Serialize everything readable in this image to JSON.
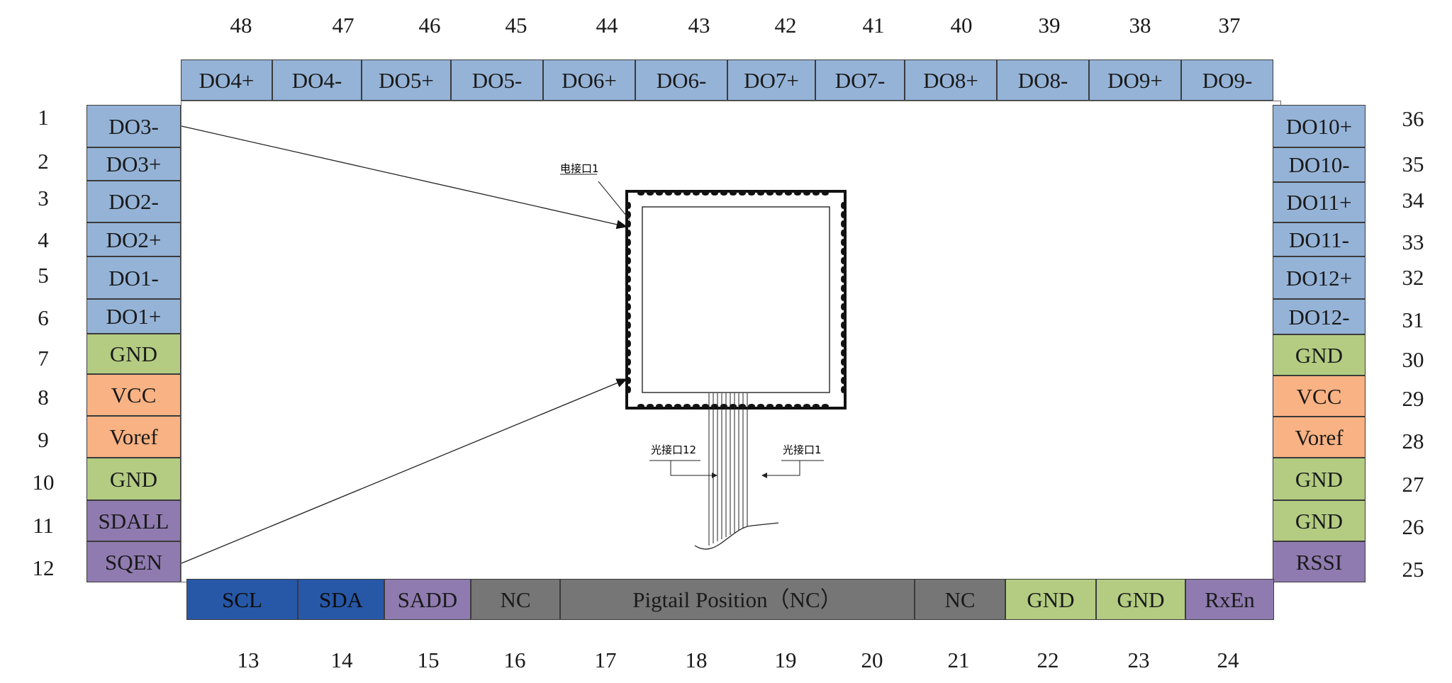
{
  "top_pins": [
    {
      "num": "48",
      "label": "DO4+",
      "color": "#95b3d7"
    },
    {
      "num": "47",
      "label": "DO4-",
      "color": "#95b3d7"
    },
    {
      "num": "46",
      "label": "DO5+",
      "color": "#95b3d7"
    },
    {
      "num": "45",
      "label": "DO5-",
      "color": "#95b3d7"
    },
    {
      "num": "44",
      "label": "DO6+",
      "color": "#95b3d7"
    },
    {
      "num": "43",
      "label": "DO6-",
      "color": "#95b3d7"
    },
    {
      "num": "42",
      "label": "DO7+",
      "color": "#95b3d7"
    },
    {
      "num": "41",
      "label": "DO7-",
      "color": "#95b3d7"
    },
    {
      "num": "40",
      "label": "DO8+",
      "color": "#95b3d7"
    },
    {
      "num": "39",
      "label": "DO8-",
      "color": "#95b3d7"
    },
    {
      "num": "38",
      "label": "DO9+",
      "color": "#95b3d7"
    },
    {
      "num": "37",
      "label": "DO9-",
      "color": "#95b3d7"
    }
  ],
  "left_pins": [
    {
      "num": "1",
      "label": "DO3-",
      "color": "#95b3d7"
    },
    {
      "num": "2",
      "label": "DO3+",
      "color": "#95b3d7"
    },
    {
      "num": "3",
      "label": "DO2-",
      "color": "#95b3d7"
    },
    {
      "num": "4",
      "label": "DO2+",
      "color": "#95b3d7"
    },
    {
      "num": "5",
      "label": "DO1-",
      "color": "#95b3d7"
    },
    {
      "num": "6",
      "label": "DO1+",
      "color": "#95b3d7"
    },
    {
      "num": "7",
      "label": "GND",
      "color": "#b3cc82"
    },
    {
      "num": "8",
      "label": "VCC",
      "color": "#f9b283"
    },
    {
      "num": "9",
      "label": "Voref",
      "color": "#f9b283"
    },
    {
      "num": "10",
      "label": "GND",
      "color": "#b3cc82"
    },
    {
      "num": "11",
      "label": "SDALL",
      "color": "#8f7bb0"
    },
    {
      "num": "12",
      "label": "SQEN",
      "color": "#8f7bb0"
    }
  ],
  "right_pins": [
    {
      "num": "36",
      "label": "DO10+",
      "color": "#95b3d7"
    },
    {
      "num": "35",
      "label": "DO10-",
      "color": "#95b3d7"
    },
    {
      "num": "34",
      "label": "DO11+",
      "color": "#95b3d7"
    },
    {
      "num": "33",
      "label": "DO11-",
      "color": "#95b3d7"
    },
    {
      "num": "32",
      "label": "DO12+",
      "color": "#95b3d7"
    },
    {
      "num": "31",
      "label": "DO12-",
      "color": "#95b3d7"
    },
    {
      "num": "30",
      "label": "GND",
      "color": "#b3cc82"
    },
    {
      "num": "29",
      "label": "VCC",
      "color": "#f9b283"
    },
    {
      "num": "28",
      "label": "Voref",
      "color": "#f9b283"
    },
    {
      "num": "27",
      "label": "GND",
      "color": "#b3cc82"
    },
    {
      "num": "26",
      "label": "GND",
      "color": "#b3cc82"
    },
    {
      "num": "25",
      "label": "RSSI",
      "color": "#8f7bb0"
    }
  ],
  "bottom_pins": [
    {
      "label": "SCL",
      "color": "#2757a7"
    },
    {
      "label": "SDA",
      "color": "#2757a7"
    },
    {
      "label": "SADD",
      "color": "#8f7bb0"
    },
    {
      "label": "NC",
      "color": "#767676"
    },
    {
      "label": "Pigtail Position（NC）",
      "color": "#767676"
    },
    {
      "label": "NC",
      "color": "#767676"
    },
    {
      "label": "GND",
      "color": "#b3cc82"
    },
    {
      "label": "GND",
      "color": "#b3cc82"
    },
    {
      "label": "RxEn",
      "color": "#8f7bb0"
    }
  ],
  "bottom_numbers": [
    "13",
    "14",
    "15",
    "16",
    "17",
    "18",
    "19",
    "20",
    "21",
    "22",
    "23",
    "24"
  ],
  "drawing_labels": {
    "electrical_port": "电接口1",
    "optical_port_12": "光接口12",
    "optical_port_1": "光接口1"
  }
}
